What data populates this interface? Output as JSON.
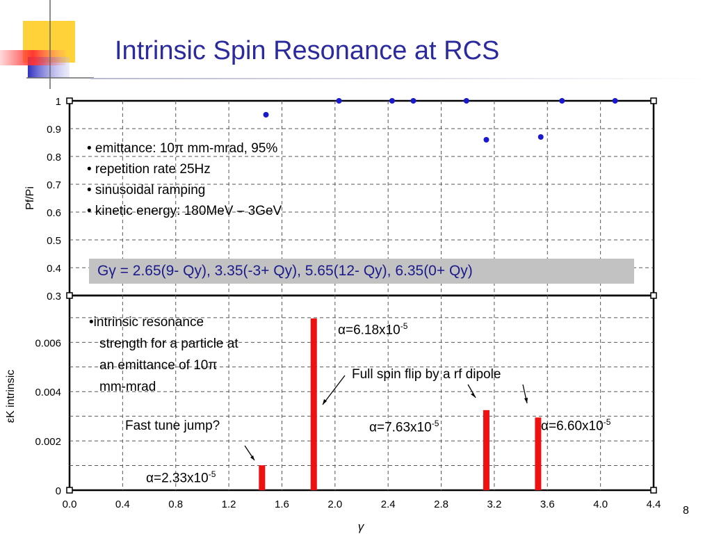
{
  "slide": {
    "title": "Intrinsic Spin Resonance at RCS",
    "page_number": "8"
  },
  "bullets": [
    "• emittance: 10π mm-mrad, 95%",
    "• repetition rate 25Hz",
    "• sinusoidal ramping",
    "• kinetic energy: 180MeV – 3GeV"
  ],
  "resonance_formula": "Gγ = 2.65(9- Qy), 3.35(-3+ Qy), 5.65(12- Qy), 6.35(0+ Qy)",
  "intrinsic_note": [
    "•intrinsic resonance",
    "strength for a particle at",
    "an emittance of 10π",
    "mm-mrad"
  ],
  "annotations": {
    "fast_tune_jump": "Fast tune jump?",
    "full_spin_flip": "Full spin flip by a rf dipole",
    "alpha_labels": [
      {
        "prefix": "α=2.33x10",
        "exp": "-5"
      },
      {
        "prefix": "α=6.18x10",
        "exp": "-5"
      },
      {
        "prefix": "α=7.63x10",
        "exp": "-5"
      },
      {
        "prefix": "α=6.60x10",
        "exp": "-5"
      }
    ]
  },
  "chart_data": [
    {
      "type": "scatter",
      "ylabel": "Pf/Pi",
      "ylim": [
        0.3,
        1.0
      ],
      "yticks": [
        "1",
        "0.9",
        "0.8",
        "0.7",
        "0.6",
        "0.5",
        "0.4",
        "0.3"
      ],
      "xlim": [
        0.0,
        4.4
      ],
      "grid": true,
      "point_color": "#1a1acc",
      "x": [
        1.48,
        2.03,
        2.43,
        2.59,
        2.99,
        3.14,
        3.55,
        3.71,
        4.11
      ],
      "y": [
        0.95,
        1.0,
        1.0,
        1.0,
        1.0,
        0.86,
        0.87,
        1.0,
        1.0
      ]
    },
    {
      "type": "bar",
      "ylabel": "εK intrinsic",
      "ylim": [
        0,
        0.0079
      ],
      "yticks": [
        "0.006",
        "0.004",
        "0.002",
        "0"
      ],
      "xlabel": "γ",
      "xlim": [
        0.0,
        4.4
      ],
      "xticks": [
        "0.0",
        "0.4",
        "0.8",
        "1.2",
        "1.6",
        "2.0",
        "2.4",
        "2.8",
        "3.2",
        "3.6",
        "4.0",
        "4.4"
      ],
      "grid": true,
      "bar_color": "#ee1111",
      "x": [
        1.45,
        1.84,
        3.14,
        3.53
      ],
      "values": [
        0.00101,
        0.00697,
        0.00325,
        0.00295
      ]
    }
  ]
}
